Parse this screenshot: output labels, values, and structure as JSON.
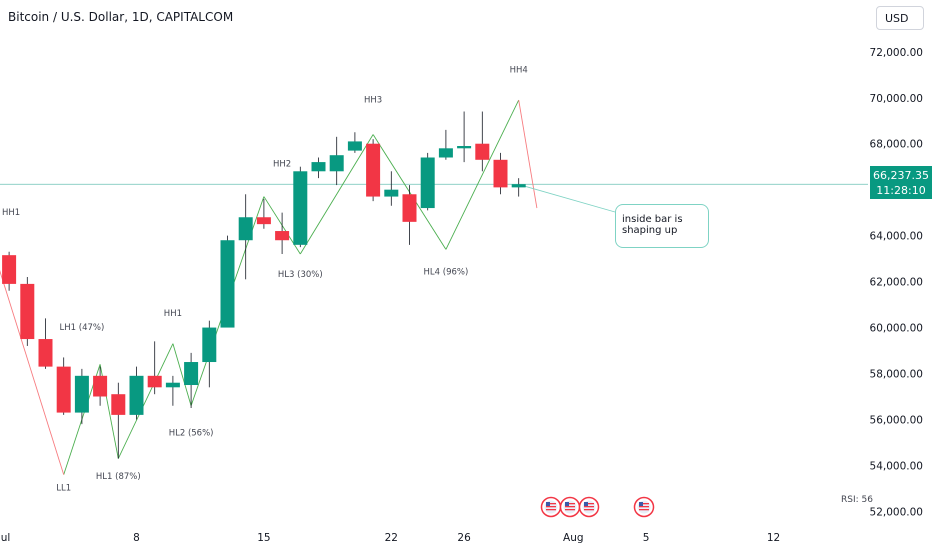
{
  "header": {
    "symbol_title": "Bitcoin / U.S. Dollar, 1D, CAPITALCOM",
    "currency_button": "USD"
  },
  "price_tag": {
    "price": "66,237.35",
    "countdown": "11:28:10"
  },
  "callout": {
    "text": "inside bar is shaping up"
  },
  "rsi_label": "RSI: 56",
  "colors": {
    "up": "#089981",
    "down": "#f23645",
    "wave_up": "#4caf50",
    "wave_down": "#f77c80",
    "price_line": "#089981",
    "event_icon": "#f23645"
  },
  "event_icons": [
    "flag-icon",
    "flag-icon",
    "flag-icon",
    "flag-icon"
  ],
  "chart_data": {
    "type": "candlestick",
    "title": "Bitcoin / U.S. Dollar, 1D, CAPITALCOM",
    "ylim": [
      51800,
      72600
    ],
    "y_ticks": [
      52000,
      54000,
      56000,
      58000,
      60000,
      62000,
      64000,
      66000,
      68000,
      70000,
      72000
    ],
    "y_tick_labels": [
      "52,000.00",
      "54,000.00",
      "56,000.00",
      "58,000.00",
      "60,000.00",
      "62,000.00",
      "64,000.00",
      "66,000.00",
      "68,000.00",
      "70,000.00",
      "72,000.00"
    ],
    "x_ticks": [
      {
        "label": "Jul",
        "index": -1
      },
      {
        "label": "8",
        "index": 7
      },
      {
        "label": "15",
        "index": 14
      },
      {
        "label": "22",
        "index": 21
      },
      {
        "label": "26",
        "index": 25
      },
      {
        "label": "Aug",
        "index": 31
      },
      {
        "label": "5",
        "index": 35
      },
      {
        "label": "12",
        "index": 42
      }
    ],
    "candles": [
      {
        "o": 63150,
        "h": 63300,
        "l": 61600,
        "c": 61900
      },
      {
        "o": 61900,
        "h": 62200,
        "l": 59200,
        "c": 59500
      },
      {
        "o": 59500,
        "h": 60400,
        "l": 58200,
        "c": 58300
      },
      {
        "o": 58300,
        "h": 58700,
        "l": 56200,
        "c": 56300
      },
      {
        "o": 56300,
        "h": 58200,
        "l": 55800,
        "c": 57900
      },
      {
        "o": 57900,
        "h": 58300,
        "l": 56600,
        "c": 57000
      },
      {
        "o": 57100,
        "h": 57600,
        "l": 54300,
        "c": 56200
      },
      {
        "o": 56200,
        "h": 58300,
        "l": 56000,
        "c": 57900
      },
      {
        "o": 57900,
        "h": 59400,
        "l": 57100,
        "c": 57400
      },
      {
        "o": 57400,
        "h": 57900,
        "l": 56600,
        "c": 57600
      },
      {
        "o": 57500,
        "h": 58900,
        "l": 56500,
        "c": 58500
      },
      {
        "o": 58500,
        "h": 60300,
        "l": 57400,
        "c": 60000
      },
      {
        "o": 60000,
        "h": 64000,
        "l": 60000,
        "c": 63800
      },
      {
        "o": 63800,
        "h": 65800,
        "l": 62100,
        "c": 64800
      },
      {
        "o": 64800,
        "h": 65600,
        "l": 64300,
        "c": 64500
      },
      {
        "o": 64200,
        "h": 65000,
        "l": 63200,
        "c": 63800
      },
      {
        "o": 63600,
        "h": 67000,
        "l": 63500,
        "c": 66800
      },
      {
        "o": 66800,
        "h": 67400,
        "l": 66500,
        "c": 67200
      },
      {
        "o": 66800,
        "h": 68300,
        "l": 66200,
        "c": 67500
      },
      {
        "o": 67700,
        "h": 68500,
        "l": 67600,
        "c": 68100
      },
      {
        "o": 68000,
        "h": 68200,
        "l": 65500,
        "c": 65700
      },
      {
        "o": 65700,
        "h": 66800,
        "l": 65300,
        "c": 66000
      },
      {
        "o": 65800,
        "h": 66200,
        "l": 63600,
        "c": 64600
      },
      {
        "o": 65200,
        "h": 67600,
        "l": 65100,
        "c": 67400
      },
      {
        "o": 67400,
        "h": 68600,
        "l": 67300,
        "c": 67800
      },
      {
        "o": 67800,
        "h": 69400,
        "l": 67200,
        "c": 67900
      },
      {
        "o": 68000,
        "h": 69400,
        "l": 66800,
        "c": 67300
      },
      {
        "o": 67300,
        "h": 67600,
        "l": 65800,
        "c": 66100
      },
      {
        "o": 66100,
        "h": 66500,
        "l": 65700,
        "c": 66237
      }
    ],
    "wave_labels": [
      {
        "text": "HH1",
        "index": -1,
        "price": 64900
      },
      {
        "text": "LL1",
        "index": 3,
        "price": 52900
      },
      {
        "text": "LH1 (47%)",
        "index": 4,
        "price": 59900
      },
      {
        "text": "HL1 (87%)",
        "index": 6,
        "price": 53400
      },
      {
        "text": "HH1",
        "index": 9,
        "price": 60500
      },
      {
        "text": "HL2 (56%)",
        "index": 10,
        "price": 55300
      },
      {
        "text": "HH2",
        "index": 15,
        "price": 67000
      },
      {
        "text": "HL3 (30%)",
        "index": 16,
        "price": 62200
      },
      {
        "text": "HH3",
        "index": 20,
        "price": 69800
      },
      {
        "text": "HL4 (96%)",
        "index": 24,
        "price": 62300
      },
      {
        "text": "HH4",
        "index": 28,
        "price": 71100
      }
    ],
    "wave_path_up": [
      [
        3,
        53600
      ],
      [
        5,
        58400
      ],
      [
        6,
        54300
      ],
      [
        9,
        59300
      ],
      [
        10,
        56600
      ],
      [
        14,
        65700
      ],
      [
        16,
        63200
      ],
      [
        20,
        68400
      ],
      [
        24,
        63400
      ],
      [
        28,
        69900
      ]
    ],
    "wave_path_down": [
      [
        -1,
        63700
      ],
      [
        3,
        53600
      ],
      [
        28,
        69900
      ],
      [
        29,
        65200
      ]
    ],
    "current_price": 66237.35
  }
}
